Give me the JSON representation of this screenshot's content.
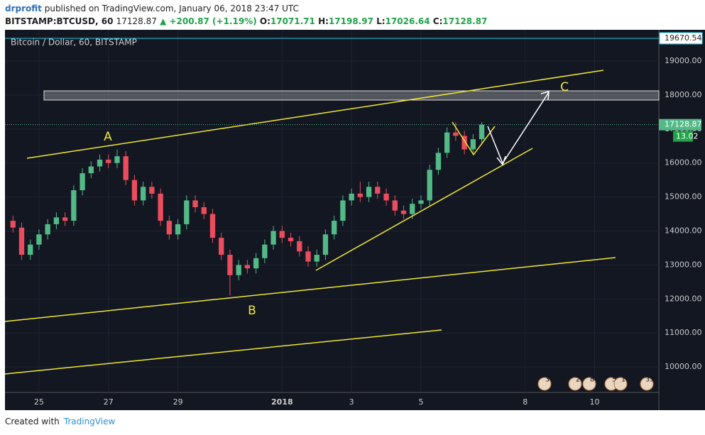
{
  "header": {
    "author": "drprofit",
    "published": "published on TradingView.com, January 06, 2018 23:47 UTC",
    "symbol": "BITSTAMP:BTCUSD, 60",
    "price": "17128.87",
    "change": "▲ +200.87 (+1.19%)",
    "o_label": "O:",
    "o": "17071.71",
    "h_label": "H:",
    "h": "17198.97",
    "l_label": "L:",
    "l": "17026.64",
    "c_label": "C:",
    "c": "17128.87"
  },
  "footer": {
    "created": "Created with",
    "brand": "TradingView"
  },
  "chart_data": {
    "type": "candlestick",
    "legend": "Bitcoin / Dollar, 60, BITSTAMP",
    "up_color": "#53b987",
    "down_color": "#eb4d5c",
    "grid": true,
    "x": [
      24.25,
      24.5,
      24.75,
      25,
      25.25,
      25.5,
      25.75,
      26,
      26.25,
      26.5,
      26.75,
      27,
      27.25,
      27.5,
      27.75,
      28,
      28.25,
      28.5,
      28.75,
      29,
      29.25,
      29.5,
      29.75,
      30,
      30.25,
      30.5,
      30.75,
      31,
      31.25,
      31.5,
      31.75,
      32,
      32.25,
      32.5,
      32.75,
      33,
      33.25,
      33.5,
      33.75,
      34,
      34.25,
      34.5,
      34.75,
      35,
      35.25,
      35.5,
      35.75,
      36,
      36.25,
      36.5,
      36.75,
      37,
      37.25,
      37.5,
      37.75
    ],
    "open": [
      14300,
      14100,
      13300,
      13600,
      13900,
      14200,
      14400,
      14300,
      15200,
      15700,
      15900,
      16100,
      16000,
      16200,
      15500,
      14900,
      15300,
      15100,
      14300,
      13900,
      14200,
      14900,
      14700,
      14500,
      13800,
      13300,
      12700,
      13000,
      12900,
      13200,
      13600,
      14000,
      13800,
      13700,
      13400,
      13100,
      13300,
      13900,
      14300,
      14900,
      15100,
      15000,
      15300,
      15100,
      14900,
      14600,
      14500,
      14800,
      14900,
      15800,
      16300,
      16900,
      16800,
      16400,
      16700
    ],
    "high": [
      14450,
      14250,
      13750,
      14050,
      14350,
      14550,
      14550,
      15350,
      15850,
      16050,
      16250,
      16250,
      16400,
      16350,
      15650,
      15450,
      15450,
      15250,
      14450,
      14350,
      15050,
      15050,
      14850,
      14650,
      13950,
      13450,
      13150,
      13150,
      13350,
      13750,
      14150,
      14150,
      13950,
      13850,
      13550,
      13450,
      14050,
      14450,
      15050,
      15250,
      15450,
      15450,
      15450,
      15250,
      15050,
      14750,
      14950,
      15050,
      15950,
      16450,
      17050,
      17200,
      16950,
      16850,
      17198.97
    ],
    "low": [
      13950,
      13150,
      13150,
      13450,
      13750,
      14050,
      14150,
      14150,
      15050,
      15550,
      15750,
      15850,
      15850,
      15350,
      14750,
      14750,
      14950,
      14150,
      13750,
      13750,
      14050,
      14550,
      14350,
      13650,
      13150,
      12100,
      12550,
      12750,
      12750,
      13050,
      13450,
      13650,
      13550,
      13250,
      12950,
      12950,
      13150,
      13750,
      14150,
      14750,
      14850,
      14850,
      14950,
      14750,
      14450,
      14350,
      14350,
      14650,
      14750,
      15650,
      16150,
      16650,
      16250,
      16250,
      16550
    ],
    "close": [
      14100,
      13300,
      13600,
      13900,
      14200,
      14400,
      14300,
      15200,
      15700,
      15900,
      16100,
      16000,
      16200,
      15500,
      14900,
      15300,
      15100,
      14300,
      13900,
      14200,
      14900,
      14700,
      14500,
      13800,
      13300,
      12700,
      13000,
      12900,
      13200,
      13600,
      14000,
      13800,
      13700,
      13400,
      13100,
      13300,
      13900,
      14300,
      14900,
      15100,
      15000,
      15300,
      15100,
      14900,
      14600,
      14500,
      14800,
      14900,
      15800,
      16300,
      16900,
      16800,
      16400,
      16700,
      17128.87
    ],
    "xlim": [
      24.02,
      42.85
    ],
    "xticks": [
      25,
      27,
      29,
      {
        "value": 32,
        "label": "2018"
      },
      {
        "value": 34,
        "label": "3"
      },
      {
        "value": 36,
        "label": "5"
      },
      {
        "value": 39,
        "label": "8"
      },
      {
        "value": 41,
        "label": "10"
      }
    ],
    "ylim": [
      9250,
      19920
    ],
    "yticks": [
      {
        "value": 10000,
        "label": "10000.00"
      },
      {
        "value": 11000,
        "label": "11000.00"
      },
      {
        "value": 12000,
        "label": "12000.00"
      },
      {
        "value": 13000,
        "label": "13000.00"
      },
      {
        "value": 14000,
        "label": "14000.00"
      },
      {
        "value": 15000,
        "label": "15000.00"
      },
      {
        "value": 16000,
        "label": "16000.00"
      },
      {
        "value": 17000,
        "label": "17000.00"
      },
      {
        "value": 18000,
        "label": "18000.00"
      },
      {
        "value": 19000,
        "label": "19000.00"
      }
    ],
    "last_price": {
      "value": 17128.87,
      "label": "17128.87"
    },
    "countdown": "13.02",
    "high_marker": {
      "value": 19670.54,
      "label": "19670.54"
    },
    "annotations": [
      "A",
      "B",
      "C"
    ],
    "events": [
      "3",
      "2",
      "8",
      "5",
      "1",
      "33"
    ]
  }
}
